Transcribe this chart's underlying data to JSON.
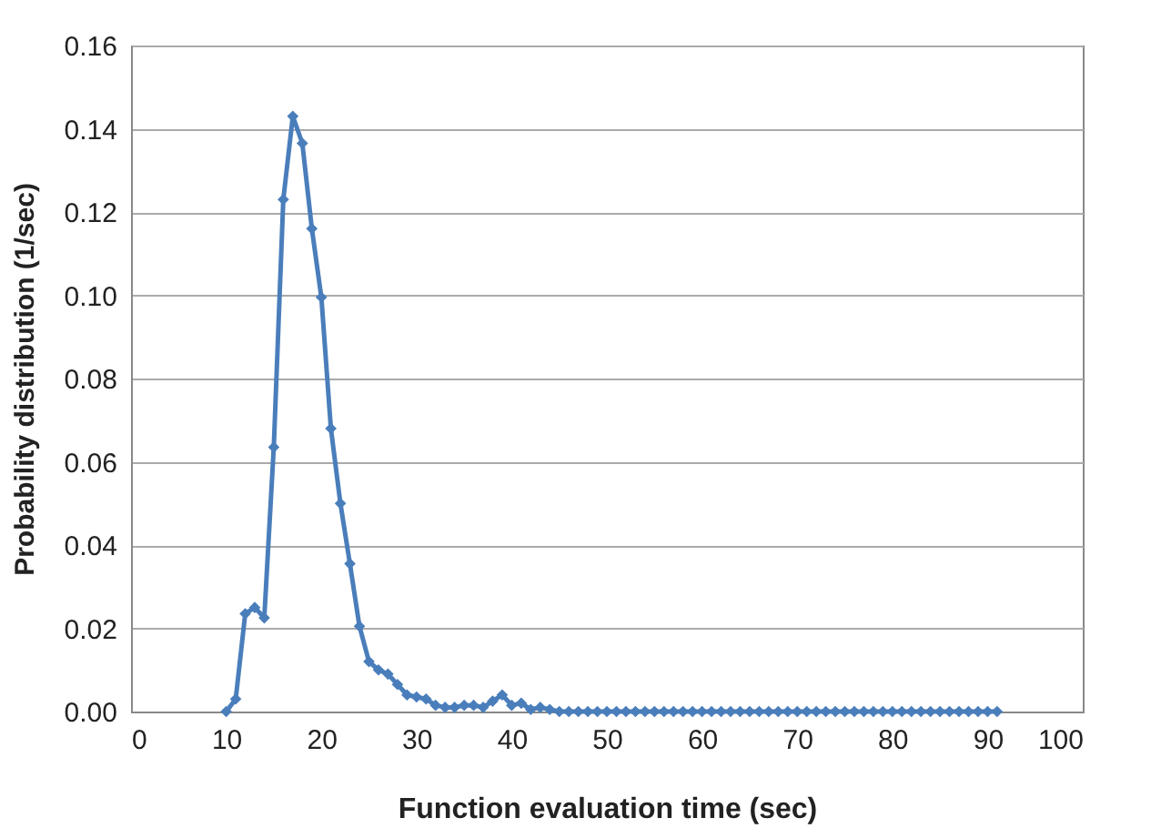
{
  "chart_data": {
    "type": "line",
    "xlabel": "Function evaluation time (sec)",
    "ylabel": "Probability distribution (1/sec)",
    "x": [
      10,
      11,
      12,
      13,
      14,
      15,
      16,
      17,
      18,
      19,
      20,
      21,
      22,
      23,
      24,
      25,
      26,
      27,
      28,
      29,
      30,
      31,
      32,
      33,
      34,
      35,
      36,
      37,
      38,
      39,
      40,
      41,
      42,
      43,
      44,
      45,
      46,
      47,
      48,
      49,
      50,
      51,
      52,
      53,
      54,
      55,
      56,
      57,
      58,
      59,
      60,
      61,
      62,
      63,
      64,
      65,
      66,
      67,
      68,
      69,
      70,
      71,
      72,
      73,
      74,
      75,
      76,
      77,
      78,
      79,
      80,
      81,
      82,
      83,
      84,
      85,
      86,
      87,
      88,
      89,
      90,
      91
    ],
    "series": [
      {
        "color": "#4a7ebb",
        "values": [
          0,
          0.003,
          0.0235,
          0.025,
          0.0225,
          0.0635,
          0.123,
          0.143,
          0.1365,
          0.116,
          0.0995,
          0.068,
          0.05,
          0.0355,
          0.0205,
          0.012,
          0.01,
          0.009,
          0.0065,
          0.004,
          0.0035,
          0.003,
          0.0015,
          0.001,
          0.001,
          0.0015,
          0.0015,
          0.001,
          0.0025,
          0.004,
          0.0015,
          0.002,
          0.0005,
          0.001,
          0.0005,
          0,
          0,
          0,
          0,
          0,
          0,
          0,
          0,
          0,
          0,
          0,
          0,
          0,
          0,
          0,
          0,
          0,
          0,
          0,
          0,
          0,
          0,
          0,
          0,
          0,
          0,
          0,
          0,
          0,
          0,
          0,
          0,
          0,
          0,
          0,
          0,
          0,
          0,
          0,
          0,
          0,
          0,
          0,
          0,
          0,
          0,
          0
        ]
      }
    ],
    "xlim": [
      0,
      100
    ],
    "xticks": [
      0,
      10,
      20,
      30,
      40,
      50,
      60,
      70,
      80,
      90,
      100
    ],
    "ylim": [
      0,
      0.16
    ],
    "yticks": [
      {
        "value": 0,
        "label": "0.00"
      },
      {
        "value": 0.02,
        "label": "0.02"
      },
      {
        "value": 0.04,
        "label": "0.04"
      },
      {
        "value": 0.06,
        "label": "0.06"
      },
      {
        "value": 0.08,
        "label": "0.08"
      },
      {
        "value": 0.1,
        "label": "0.10"
      },
      {
        "value": 0.12,
        "label": "0.12"
      },
      {
        "value": 0.14,
        "label": "0.14"
      },
      {
        "value": 0.16,
        "label": "0.16"
      }
    ],
    "grid": "y",
    "marker": "diamond",
    "line_style": "solid"
  }
}
